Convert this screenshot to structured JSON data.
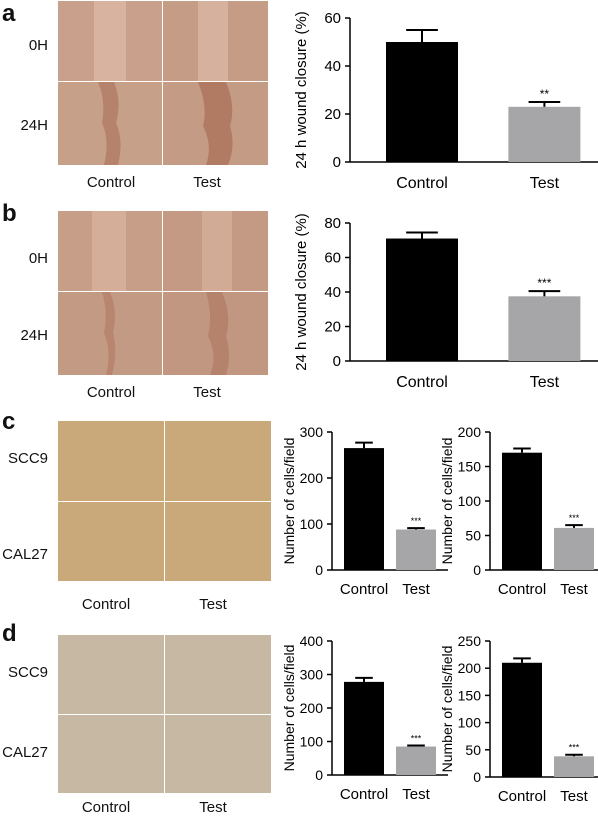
{
  "panels": [
    {
      "letter": "a",
      "rows": [
        "0H",
        "24H"
      ],
      "cols": [
        "Control",
        "Test"
      ]
    },
    {
      "letter": "b",
      "rows": [
        "0H",
        "24H"
      ],
      "cols": [
        "Control",
        "Test"
      ]
    },
    {
      "letter": "c",
      "rows": [
        "SCC9",
        "CAL27"
      ],
      "cols": [
        "Control",
        "Test"
      ]
    },
    {
      "letter": "d",
      "rows": [
        "SCC9",
        "CAL27"
      ],
      "cols": [
        "Control",
        "Test"
      ]
    }
  ],
  "colors": {
    "control_bar": "#000000",
    "test_bar": "#a6a6a8",
    "wound_bg": "#c9a08a",
    "wound_gap": "#b98872",
    "transwell_bg": "#c9a97a",
    "cell_stain": "#7b2a6e"
  },
  "chart_data": [
    {
      "id": "a",
      "type": "bar",
      "categories": [
        "Control",
        "Test"
      ],
      "values": [
        50,
        23
      ],
      "errors": [
        5,
        2
      ],
      "significance": [
        "",
        "**"
      ],
      "ylabel": "24 h wound closure (%)",
      "ylim": [
        0,
        60
      ],
      "yticks": [
        0,
        20,
        40,
        60
      ]
    },
    {
      "id": "b",
      "type": "bar",
      "categories": [
        "Control",
        "Test"
      ],
      "values": [
        71,
        37.5
      ],
      "errors": [
        3.5,
        3
      ],
      "significance": [
        "",
        "***"
      ],
      "ylabel": "24 h wound closure (%)",
      "ylim": [
        0,
        80
      ],
      "yticks": [
        0,
        20,
        40,
        60,
        80
      ]
    },
    {
      "id": "c1",
      "type": "bar",
      "categories": [
        "Control",
        "Test"
      ],
      "values": [
        265,
        88
      ],
      "errors": [
        12,
        3
      ],
      "significance": [
        "",
        "***"
      ],
      "ylabel": "Number of cells/field",
      "ylim": [
        0,
        300
      ],
      "yticks": [
        0,
        100,
        200,
        300
      ]
    },
    {
      "id": "c2",
      "type": "bar",
      "categories": [
        "Control",
        "Test"
      ],
      "values": [
        170,
        61
      ],
      "errors": [
        6,
        4
      ],
      "significance": [
        "",
        "***"
      ],
      "ylabel": "Number of cells/field",
      "ylim": [
        0,
        200
      ],
      "yticks": [
        0,
        50,
        100,
        150,
        200
      ]
    },
    {
      "id": "d1",
      "type": "bar",
      "categories": [
        "Control",
        "Test"
      ],
      "values": [
        278,
        85
      ],
      "errors": [
        12,
        3
      ],
      "significance": [
        "",
        "***"
      ],
      "ylabel": "Number of cells/field",
      "ylim": [
        0,
        400
      ],
      "yticks": [
        0,
        100,
        200,
        300,
        400
      ]
    },
    {
      "id": "d2",
      "type": "bar",
      "categories": [
        "Control",
        "Test"
      ],
      "values": [
        210,
        38
      ],
      "errors": [
        8,
        3
      ],
      "significance": [
        "",
        "***"
      ],
      "ylabel": "Number of cells/field",
      "ylim": [
        0,
        250
      ],
      "yticks": [
        0,
        50,
        100,
        150,
        200,
        250
      ]
    }
  ]
}
